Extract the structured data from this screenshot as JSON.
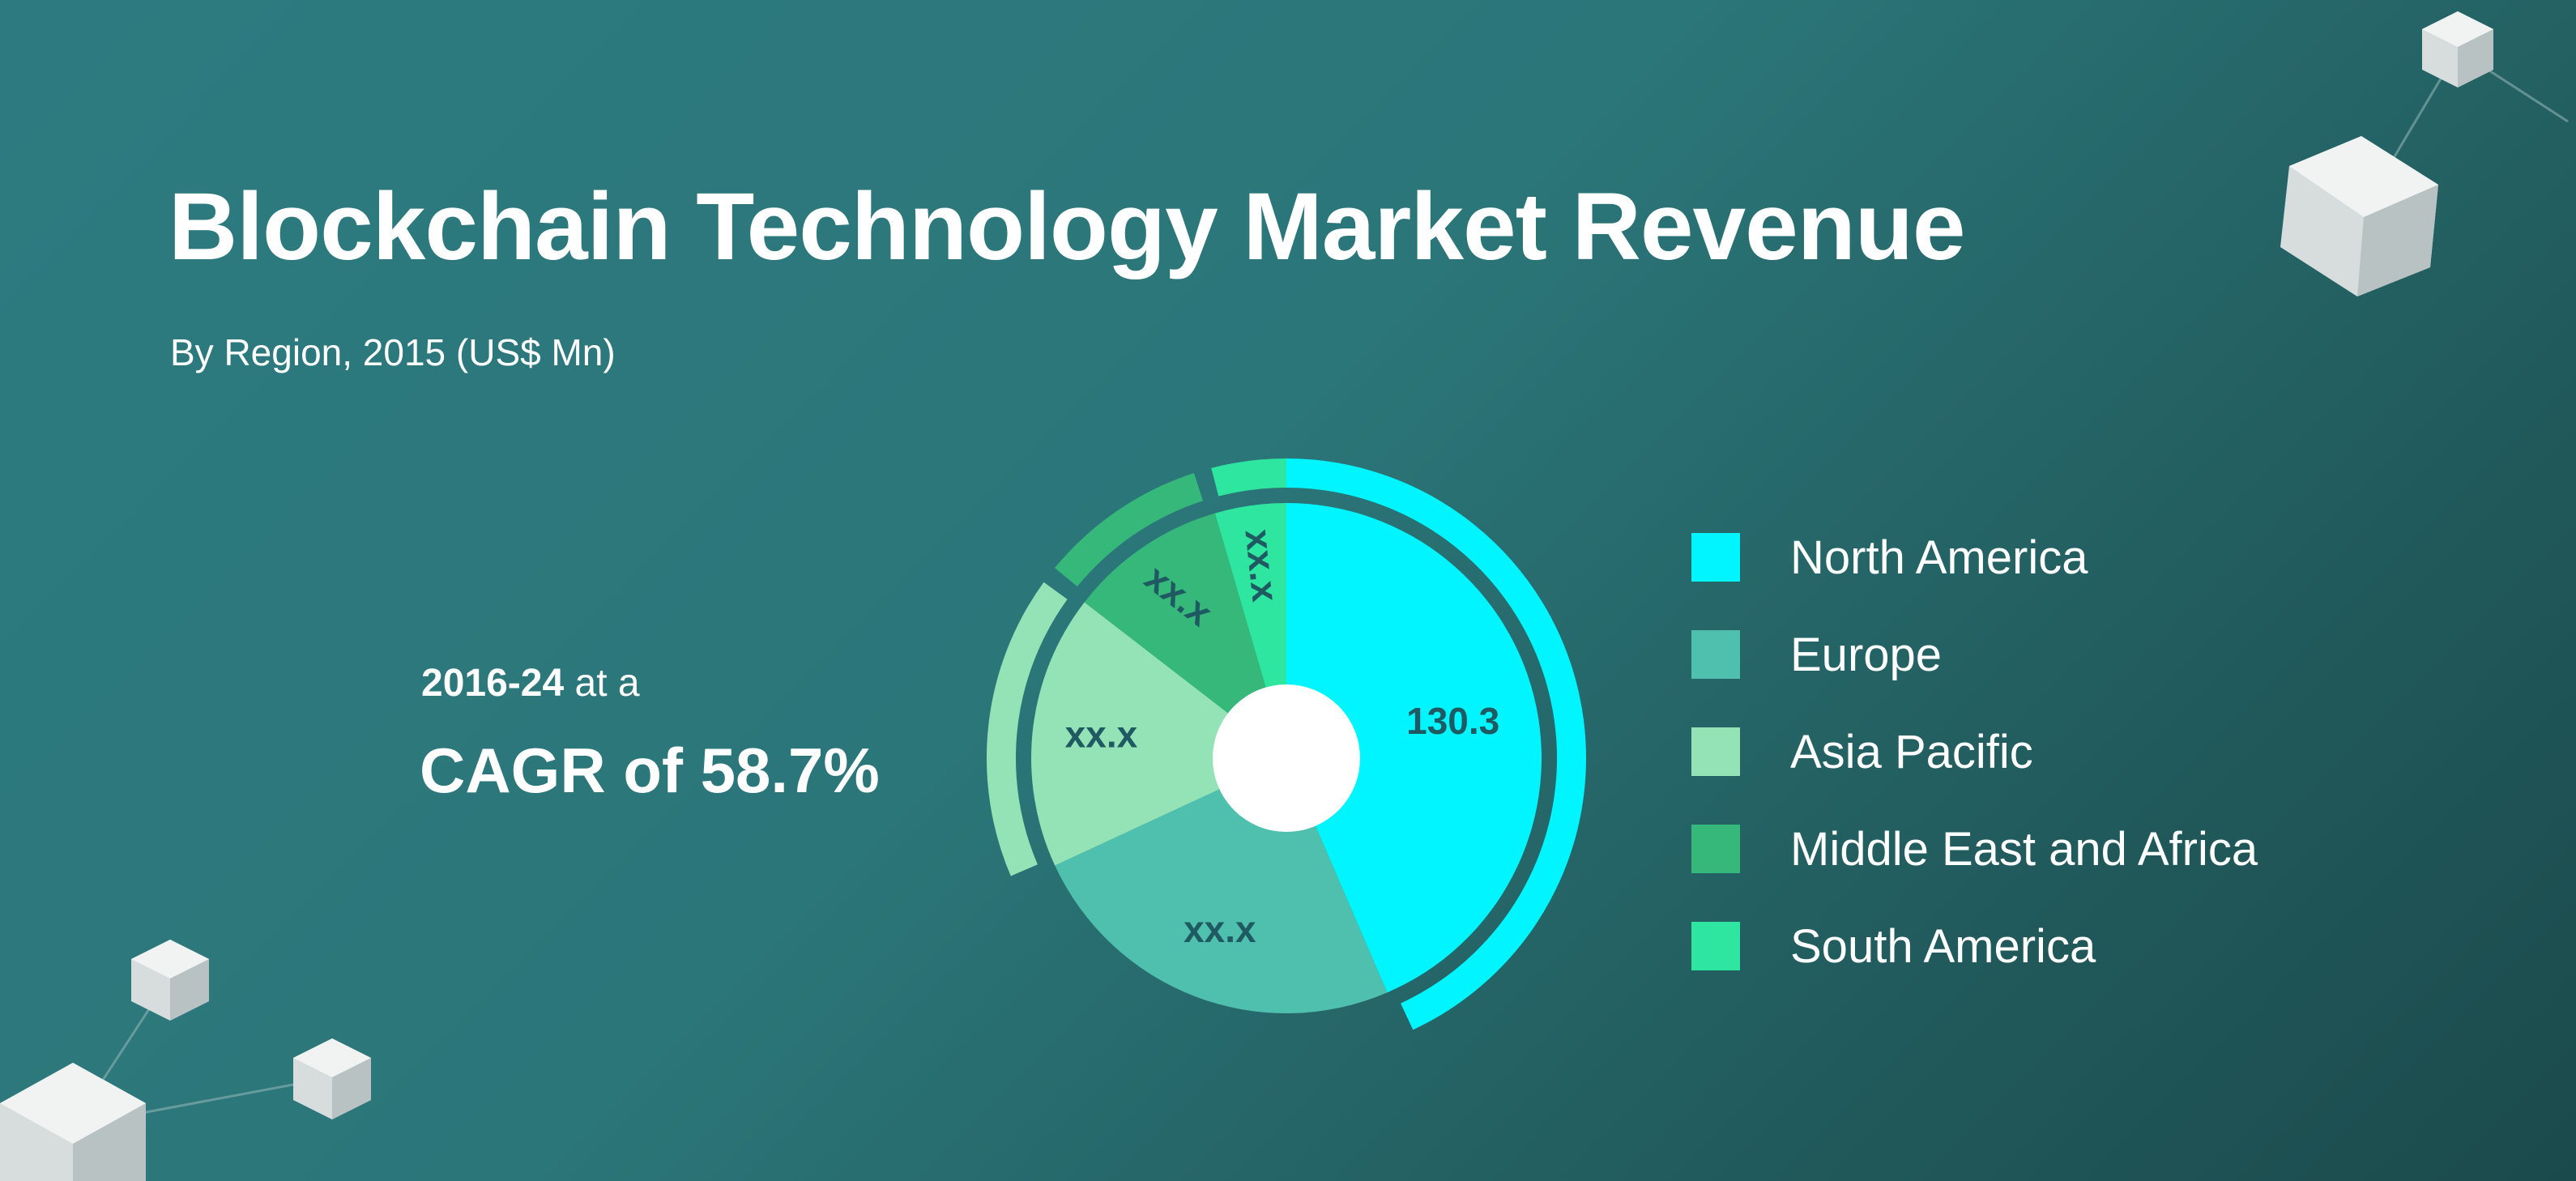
{
  "chart_data": {
    "type": "pie",
    "title": "Blockchain Technology Market Revenue",
    "subtitle": "By Region, 2015 (US$ Mn)",
    "categories": [
      "North America",
      "Europe",
      "Asia Pacific",
      "Middle East and Africa",
      "South America"
    ],
    "values": [
      130.3,
      73.5,
      52.0,
      30.0,
      13.5
    ],
    "labels": [
      "130.3",
      "xx.x",
      "xx.x",
      "xx.x",
      "xx.x"
    ],
    "colors": [
      "#00f5ff",
      "#4fc0ae",
      "#93e3b6",
      "#36b87a",
      "#2ee6a0"
    ],
    "legend_position": "right"
  },
  "cagr": {
    "period_bold": "2016-24",
    "period_rest": " at a",
    "value": "CAGR of 58.7%"
  }
}
